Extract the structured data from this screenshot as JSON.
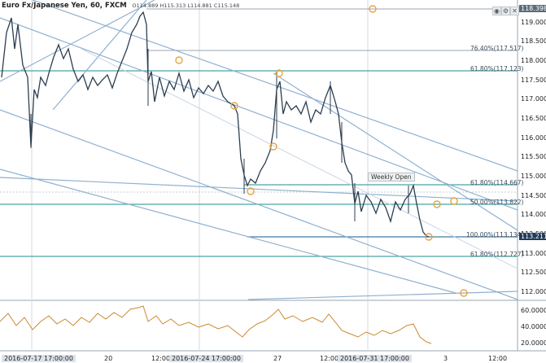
{
  "header": {
    "symbol": "Euro Fx/Japanese Yen, 60, FXCM",
    "ohlc": "O114.889 H115.313 L114.881 C115.148"
  },
  "price_axis": [
    "119.000",
    "118.500",
    "118.000",
    "117.500",
    "117.000",
    "116.500",
    "116.000",
    "115.500",
    "115.000",
    "114.500",
    "114.000",
    "113.500",
    "113.000",
    "112.500",
    "112.000"
  ],
  "price_boxes": {
    "top": "118.398",
    "last": "113.211"
  },
  "rsi_axis": [
    "60.0000",
    "40.0000",
    "20.0000"
  ],
  "time_axis": [
    {
      "label": "2016-07-17 17:00:00",
      "boxed": true
    },
    {
      "label": "20",
      "boxed": false
    },
    {
      "label": "12:00",
      "boxed": false
    },
    {
      "label": "2016-07-24 17:00:00",
      "boxed": true
    },
    {
      "label": "27",
      "boxed": false
    },
    {
      "label": "12:00",
      "boxed": false
    },
    {
      "label": "2016-07-31 17:00:00",
      "boxed": true
    },
    {
      "label": "3",
      "boxed": false
    },
    {
      "label": "12:00",
      "boxed": false
    }
  ],
  "levels": {
    "l1": "76.40%(117.517)",
    "l2": "61.80%(117.123)",
    "l3": "61.80%(114.667)",
    "l4": "50.00%(113.822)",
    "l5": "100.00%(113.134)",
    "l6": "61.80%(112.727)"
  },
  "annotation": "Weekly Open",
  "icons": {
    "eye": "eye-icon",
    "gear": "settings-icon",
    "close": "close-icon"
  },
  "colors": {
    "candle": "#2c3e50",
    "trend_line": "#7fa6c9",
    "fib_line": "#4aa3a0",
    "marker": "#e8a33d",
    "last_price_box": "#1f3b57",
    "rsi_line": "#c98a2e"
  }
}
